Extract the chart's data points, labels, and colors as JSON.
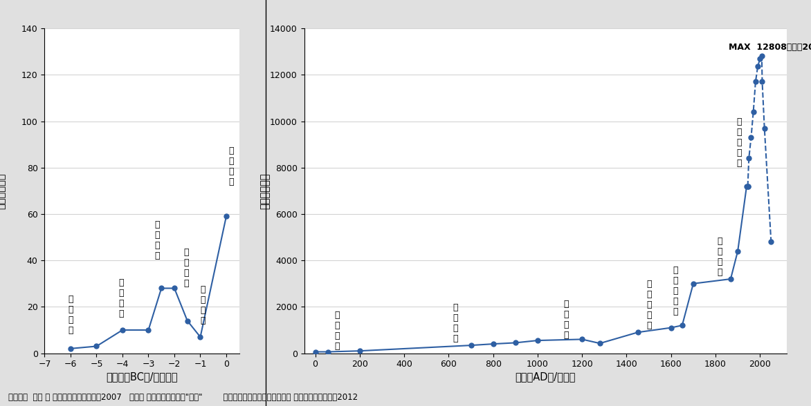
{
  "left_x": [
    -6,
    -5,
    -4,
    -3,
    -2.5,
    -2,
    -1.5,
    -1,
    0
  ],
  "left_y": [
    2,
    3,
    10,
    10,
    28,
    28,
    14,
    7,
    59
  ],
  "left_xlim": [
    -7,
    0.5
  ],
  "left_ylim": [
    0,
    140
  ],
  "left_yticks": [
    0,
    20,
    40,
    60,
    80,
    100,
    120,
    140
  ],
  "left_xticks": [
    -7,
    -6,
    -5,
    -4,
    -3,
    -2,
    -1,
    0
  ],
  "left_xlabel": "紀元前（BC）/（千年）",
  "left_ylabel": "人口（万人）",
  "right_x_solid": [
    0,
    57,
    200,
    700,
    800,
    900,
    1000,
    1200,
    1280,
    1450,
    1600,
    1650,
    1700,
    1868,
    1900,
    1940,
    1945
  ],
  "right_y_solid": [
    60,
    60,
    100,
    340,
    400,
    450,
    550,
    600,
    425,
    900,
    1100,
    1200,
    3000,
    3200,
    4400,
    7200,
    7200
  ],
  "right_x_dashed": [
    1945,
    1950,
    1960,
    1970,
    1980,
    1990,
    2000,
    2008,
    2010,
    2020,
    2050
  ],
  "right_y_dashed": [
    7200,
    8400,
    9300,
    10400,
    11700,
    12361,
    12693,
    12808,
    11700,
    9700,
    4800
  ],
  "right_xlim": [
    -50,
    2120
  ],
  "right_ylim": [
    0,
    14000
  ],
  "right_yticks": [
    0,
    2000,
    4000,
    6000,
    8000,
    10000,
    12000,
    14000
  ],
  "right_xticks": [
    0,
    200,
    400,
    600,
    800,
    1000,
    1200,
    1400,
    1600,
    1800,
    2000
  ],
  "right_xlabel": "西暦（AD）/（年）",
  "right_ylabel": "人口（万人）",
  "line_color": "#2E5FA3",
  "marker_size": 5,
  "background_color": "#E0E0E0",
  "plot_background": "#FFFFFF",
  "footer_text": "データ：  髄頭 宏 「図説で見る日本史」2007   総務省 「国勢調査」及び\"推計\"        国立社会保障・人口問題研究所 「日本の推計人口」2012"
}
